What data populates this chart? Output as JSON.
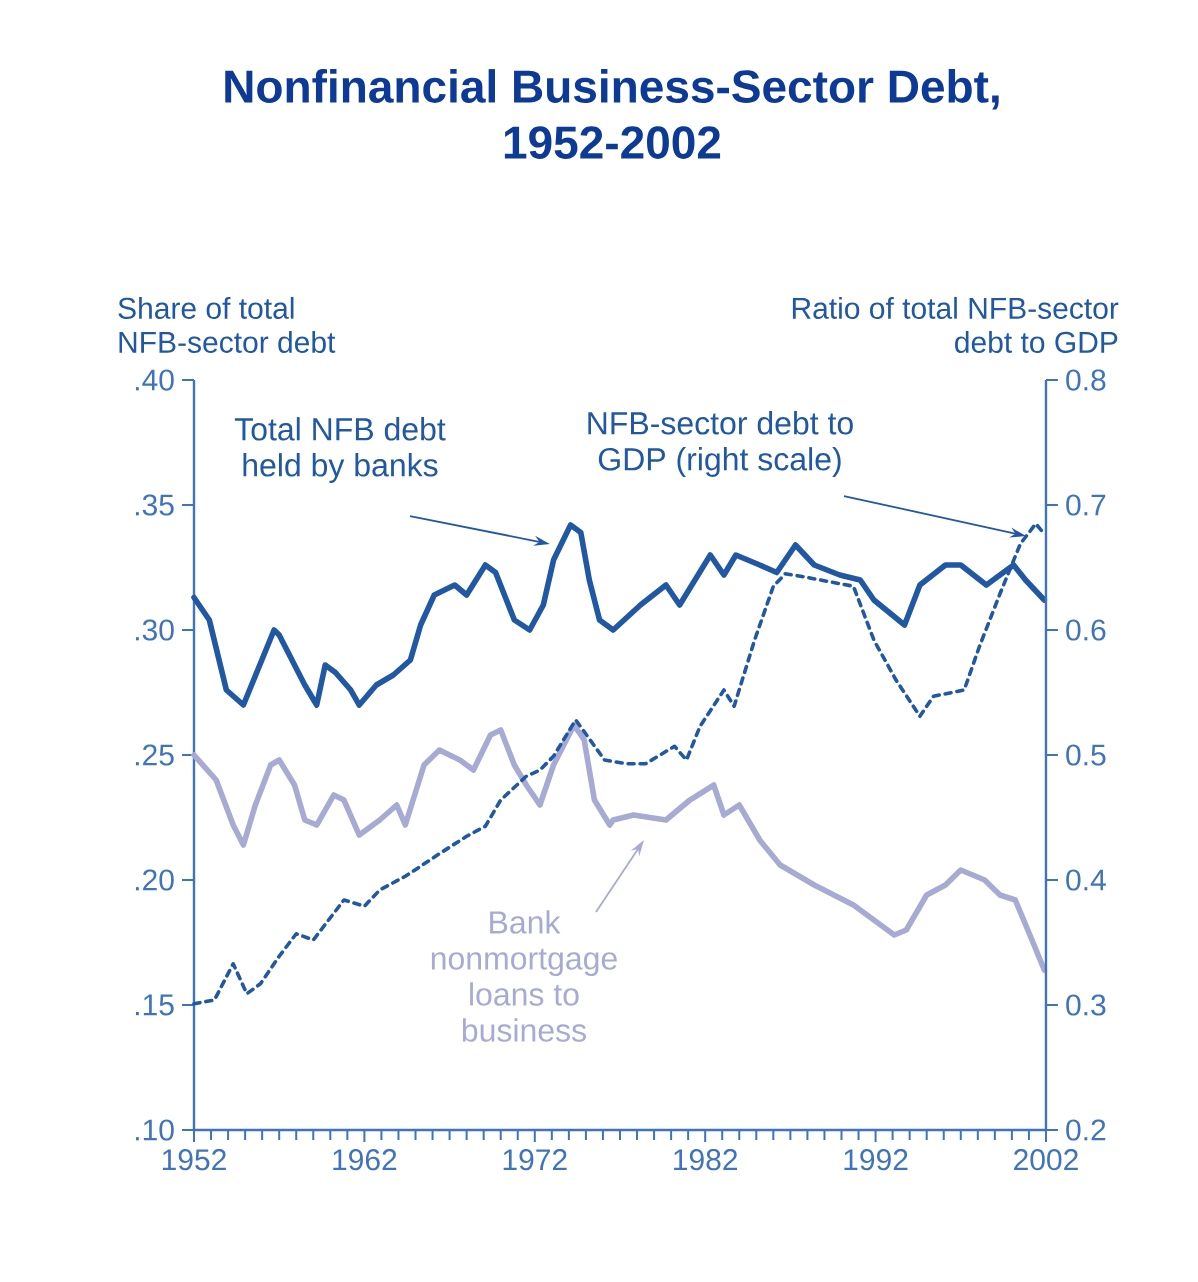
{
  "chart_data": {
    "type": "line",
    "title": "Nonfinancial Business-Sector Debt, 1952-2002",
    "ylabel": "Share of total NFB-sector debt",
    "y2label": "Ratio of total NFB-sector debt to GDP",
    "xlim": [
      1952,
      2002
    ],
    "xticks": [
      1952,
      1962,
      1972,
      1982,
      1992,
      2002
    ],
    "ylim": [
      0.1,
      0.4
    ],
    "yticks": [
      {
        "value": 0.1,
        "label": ".10"
      },
      {
        "value": 0.15,
        "label": ".15"
      },
      {
        "value": 0.2,
        "label": ".20"
      },
      {
        "value": 0.25,
        "label": ".25"
      },
      {
        "value": 0.3,
        "label": ".30"
      },
      {
        "value": 0.35,
        "label": ".35"
      },
      {
        "value": 0.4,
        "label": ".40"
      }
    ],
    "y2lim": [
      0.2,
      0.8
    ],
    "y2ticks": [
      0.2,
      0.3,
      0.4,
      0.5,
      0.6,
      0.7,
      0.8
    ],
    "grid": false,
    "marker": "none",
    "series": [
      {
        "name": "Total NFB debt held by banks",
        "color": "#2158a4",
        "line_style": "solid",
        "x": [
          1952.0,
          1952.9,
          1953.9,
          1954.9,
          1956.7,
          1957.0,
          1958.5,
          1959.2,
          1959.7,
          1960.3,
          1961.2,
          1961.7,
          1962.7,
          1963.7,
          1964.7,
          1965.3,
          1966.1,
          1967.3,
          1968.0,
          1969.1,
          1969.7,
          1970.8,
          1971.7,
          1972.5,
          1973.1,
          1974.1,
          1974.7,
          1975.2,
          1975.8,
          1976.6,
          1978.2,
          1979.7,
          1980.5,
          1982.3,
          1983.1,
          1983.8,
          1985.2,
          1986.2,
          1987.3,
          1988.4,
          1989.9,
          1991.1,
          1991.9,
          1993.7,
          1994.6,
          1996.1,
          1997.0,
          1998.5,
          2000.1,
          2000.8,
          2001.9
        ],
        "values": [
          0.313,
          0.304,
          0.276,
          0.27,
          0.3,
          0.298,
          0.278,
          0.27,
          0.286,
          0.283,
          0.276,
          0.27,
          0.278,
          0.282,
          0.288,
          0.302,
          0.314,
          0.318,
          0.314,
          0.326,
          0.323,
          0.304,
          0.3,
          0.31,
          0.328,
          0.342,
          0.339,
          0.32,
          0.304,
          0.3,
          0.31,
          0.318,
          0.31,
          0.33,
          0.322,
          0.33,
          0.326,
          0.323,
          0.334,
          0.326,
          0.322,
          0.32,
          0.312,
          0.302,
          0.318,
          0.326,
          0.326,
          0.318,
          0.326,
          0.32,
          0.312
        ]
      },
      {
        "name": "Bank nonmortgage loans to business",
        "color": "#a7abd3",
        "line_style": "solid",
        "x": [
          1952.0,
          1953.3,
          1954.3,
          1954.9,
          1955.6,
          1956.5,
          1957.0,
          1957.9,
          1958.5,
          1959.2,
          1960.2,
          1960.8,
          1961.7,
          1962.9,
          1963.9,
          1964.4,
          1965.5,
          1966.4,
          1967.6,
          1968.4,
          1969.4,
          1970.0,
          1970.8,
          1971.5,
          1972.3,
          1973.1,
          1974.3,
          1974.9,
          1975.5,
          1976.4,
          1976.6,
          1977.8,
          1979.7,
          1981.1,
          1982.5,
          1983.1,
          1984.0,
          1985.2,
          1986.4,
          1988.4,
          1990.7,
          1993.1,
          1993.8,
          1995.0,
          1996.1,
          1997.0,
          1998.4,
          1999.3,
          2000.2,
          2001.3,
          2001.9
        ],
        "values": [
          0.25,
          0.24,
          0.222,
          0.214,
          0.23,
          0.246,
          0.248,
          0.238,
          0.224,
          0.222,
          0.234,
          0.232,
          0.218,
          0.224,
          0.23,
          0.222,
          0.246,
          0.252,
          0.248,
          0.244,
          0.258,
          0.26,
          0.246,
          0.238,
          0.23,
          0.246,
          0.262,
          0.256,
          0.232,
          0.222,
          0.224,
          0.226,
          0.224,
          0.232,
          0.238,
          0.226,
          0.23,
          0.216,
          0.206,
          0.198,
          0.19,
          0.178,
          0.18,
          0.194,
          0.198,
          0.204,
          0.2,
          0.194,
          0.192,
          0.174,
          0.164
        ]
      },
      {
        "name": "NFB-sector debt to GDP (right scale)",
        "color": "#2158a4",
        "line_style": "dashed",
        "axis": "y2",
        "x": [
          1952.0,
          1953.2,
          1954.3,
          1955.1,
          1955.9,
          1957.0,
          1958.0,
          1959.0,
          1960.8,
          1962.0,
          1962.9,
          1964.4,
          1965.3,
          1966.4,
          1968.0,
          1969.1,
          1970.0,
          1971.5,
          1972.3,
          1973.1,
          1974.4,
          1976.1,
          1977.4,
          1978.5,
          1980.2,
          1980.9,
          1981.7,
          1983.1,
          1983.7,
          1984.9,
          1986.0,
          1986.7,
          1987.6,
          1990.7,
          1991.9,
          1993.2,
          1994.6,
          1995.4,
          1997.2,
          1998.1,
          1999.3,
          2000.5,
          2001.4,
          2001.9
        ],
        "values": [
          0.301,
          0.304,
          0.333,
          0.309,
          0.317,
          0.339,
          0.357,
          0.352,
          0.384,
          0.379,
          0.392,
          0.403,
          0.411,
          0.421,
          0.435,
          0.443,
          0.464,
          0.483,
          0.488,
          0.499,
          0.528,
          0.496,
          0.493,
          0.493,
          0.507,
          0.496,
          0.523,
          0.552,
          0.539,
          0.592,
          0.635,
          0.645,
          0.643,
          0.635,
          0.592,
          0.56,
          0.531,
          0.547,
          0.552,
          0.587,
          0.629,
          0.669,
          0.685,
          0.677
        ]
      }
    ]
  }
}
